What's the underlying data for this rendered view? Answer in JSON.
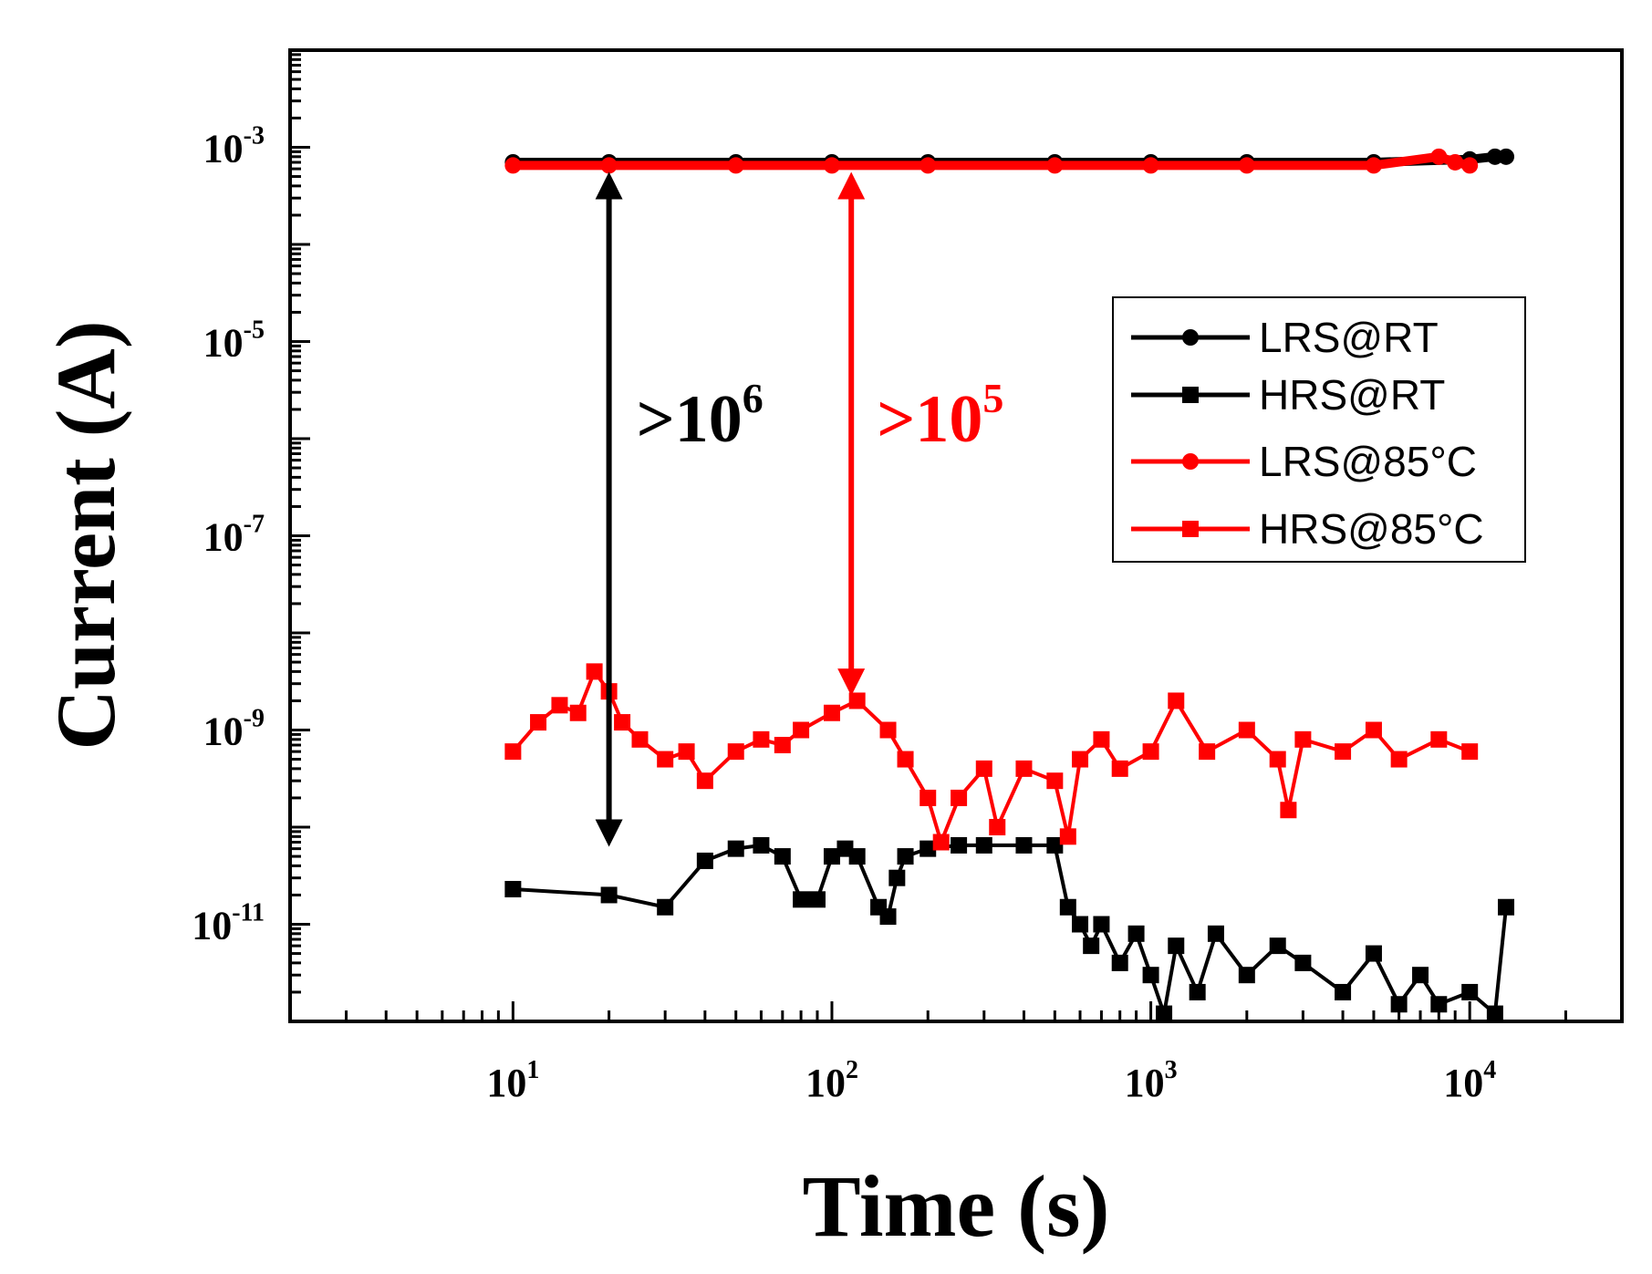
{
  "chart_data": {
    "type": "scatter",
    "xscale": "log",
    "yscale": "log",
    "xlabel": "Time (s)",
    "ylabel": "Current (A)",
    "xlim": [
      2,
      30000
    ],
    "ylim": [
      1e-12,
      0.01
    ],
    "x_ticks": [
      {
        "base": "10",
        "exp": "1"
      },
      {
        "base": "10",
        "exp": "2"
      },
      {
        "base": "10",
        "exp": "3"
      },
      {
        "base": "10",
        "exp": "4"
      }
    ],
    "y_ticks": [
      {
        "base": "10",
        "exp": "-3"
      },
      {
        "base": "10",
        "exp": "-5"
      },
      {
        "base": "10",
        "exp": "-7"
      },
      {
        "base": "10",
        "exp": "-9"
      },
      {
        "base": "10",
        "exp": "-11"
      }
    ],
    "series": [
      {
        "name": "LRS@RT",
        "color": "#000000",
        "marker": "circle",
        "x": [
          10,
          20,
          50,
          100,
          200,
          500,
          1000,
          2000,
          5000,
          10000,
          12000,
          13000
        ],
        "y": [
          0.0007,
          0.0007,
          0.0007,
          0.0007,
          0.0007,
          0.0007,
          0.0007,
          0.0007,
          0.0007,
          0.00075,
          0.0008,
          0.0008
        ]
      },
      {
        "name": "HRS@RT",
        "color": "#000000",
        "marker": "square",
        "x": [
          10,
          20,
          30,
          40,
          50,
          60,
          70,
          80,
          90,
          100,
          110,
          120,
          140,
          150,
          160,
          170,
          200,
          250,
          300,
          400,
          500,
          550,
          600,
          650,
          700,
          800,
          900,
          1000,
          1100,
          1200,
          1400,
          1600,
          2000,
          2500,
          3000,
          4000,
          5000,
          6000,
          7000,
          8000,
          10000,
          12000,
          13000
        ],
        "y": [
          2.3e-11,
          2e-11,
          1.5e-11,
          4.5e-11,
          6e-11,
          6.5e-11,
          5e-11,
          1.8e-11,
          1.8e-11,
          5e-11,
          6e-11,
          5e-11,
          1.5e-11,
          1.2e-11,
          3e-11,
          5e-11,
          6e-11,
          6.5e-11,
          6.5e-11,
          6.5e-11,
          6.5e-11,
          1.5e-11,
          1e-11,
          6e-12,
          1e-11,
          4e-12,
          8e-12,
          3e-12,
          1.2e-12,
          6e-12,
          2e-12,
          8e-12,
          3e-12,
          6e-12,
          4e-12,
          2e-12,
          5e-12,
          1.5e-12,
          3e-12,
          1.5e-12,
          2e-12,
          1.2e-12,
          1.5e-11
        ]
      },
      {
        "name": "LRS@85°C",
        "color": "#ff0000",
        "marker": "circle",
        "x": [
          10,
          20,
          50,
          100,
          200,
          500,
          1000,
          2000,
          5000,
          8000,
          9000,
          10000
        ],
        "y": [
          0.00065,
          0.00065,
          0.00065,
          0.00065,
          0.00065,
          0.00065,
          0.00065,
          0.00065,
          0.00065,
          0.0008,
          0.0007,
          0.00065
        ]
      },
      {
        "name": "HRS@85°C",
        "color": "#ff0000",
        "marker": "square",
        "x": [
          10,
          12,
          14,
          16,
          18,
          20,
          22,
          25,
          30,
          35,
          40,
          50,
          60,
          70,
          80,
          100,
          120,
          150,
          170,
          200,
          220,
          250,
          300,
          330,
          400,
          500,
          550,
          600,
          700,
          800,
          1000,
          1200,
          1500,
          2000,
          2500,
          2700,
          3000,
          4000,
          5000,
          6000,
          8000,
          10000
        ],
        "y": [
          6e-10,
          1.2e-09,
          1.8e-09,
          1.5e-09,
          4e-09,
          2.5e-09,
          1.2e-09,
          8e-10,
          5e-10,
          6e-10,
          3e-10,
          6e-10,
          8e-10,
          7e-10,
          1e-09,
          1.5e-09,
          2e-09,
          1e-09,
          5e-10,
          2e-10,
          7e-11,
          2e-10,
          4e-10,
          1e-10,
          4e-10,
          3e-10,
          8e-11,
          5e-10,
          8e-10,
          4e-10,
          6e-10,
          2e-09,
          6e-10,
          1e-09,
          5e-10,
          1.5e-10,
          8e-10,
          6e-10,
          1e-09,
          5e-10,
          8e-10,
          6e-10
        ]
      }
    ],
    "annotations": [
      {
        "text": ">10",
        "sup": "6",
        "color": "#000000",
        "x": 20,
        "y_top": 0.0005,
        "y_bottom": 7e-11
      },
      {
        "text": ">10",
        "sup": "5",
        "color": "#ff0000",
        "x": 115,
        "y_top": 0.0005,
        "y_bottom": 2.5e-09
      }
    ],
    "legend_position": "right",
    "grid": false
  }
}
